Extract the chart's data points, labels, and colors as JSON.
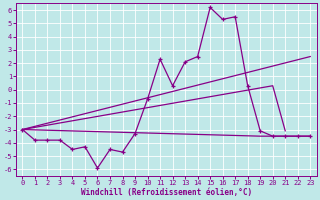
{
  "xlabel": "Windchill (Refroidissement éolien,°C)",
  "bg_color": "#c0e8e8",
  "line_color": "#880088",
  "grid_color": "#aadddd",
  "xlim": [
    -0.5,
    23.5
  ],
  "ylim": [
    -6.5,
    6.5
  ],
  "xticks": [
    0,
    1,
    2,
    3,
    4,
    5,
    6,
    7,
    8,
    9,
    10,
    11,
    12,
    13,
    14,
    15,
    16,
    17,
    18,
    19,
    20,
    21,
    22,
    23
  ],
  "yticks": [
    -6,
    -5,
    -4,
    -3,
    -2,
    -1,
    0,
    1,
    2,
    3,
    4,
    5,
    6
  ],
  "series1_x": [
    0,
    1,
    2,
    3,
    4,
    5,
    6,
    7,
    8,
    9,
    10,
    11,
    12,
    13,
    14,
    15,
    16,
    17,
    18,
    19,
    20,
    21,
    22,
    23
  ],
  "series1_y": [
    -3.0,
    -3.8,
    -3.8,
    -3.8,
    -4.5,
    -4.3,
    -5.9,
    -4.5,
    -4.7,
    -3.3,
    -0.7,
    2.3,
    0.3,
    2.1,
    2.5,
    6.2,
    5.3,
    5.5,
    0.3,
    -3.1,
    -3.5,
    -3.5,
    -3.5,
    -3.5
  ],
  "series2_x": [
    0,
    19,
    21,
    22,
    23
  ],
  "series2_y": [
    -3.0,
    -3.5,
    -3.5,
    -3.5,
    -3.5
  ],
  "series3_x": [
    0,
    23
  ],
  "series3_y": [
    -3.0,
    2.5
  ],
  "series4_x": [
    0,
    20,
    21
  ],
  "series4_y": [
    -3.0,
    0.3,
    -3.1
  ]
}
